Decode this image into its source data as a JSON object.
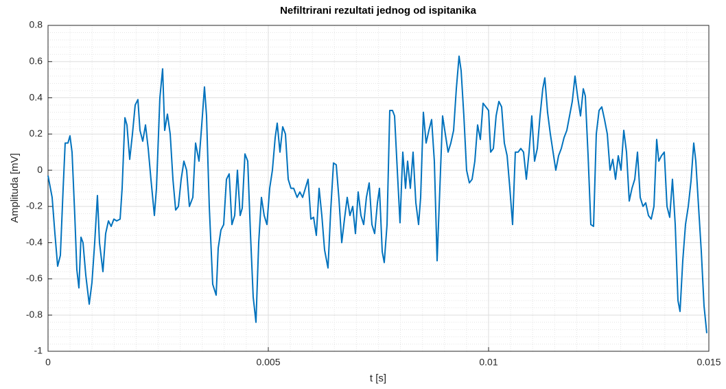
{
  "chart_data": {
    "type": "line",
    "title": "Nefiltrirani rezultati jednog od ispitanika",
    "xlabel": "t [s]",
    "ylabel": "Amplituda [mV]",
    "xlim": [
      0,
      0.015
    ],
    "ylim": [
      -1,
      0.8
    ],
    "xticks": [
      0,
      0.005,
      0.01,
      0.015
    ],
    "yticks": [
      -1,
      -0.8,
      -0.6,
      -0.4,
      -0.2,
      0,
      0.2,
      0.4,
      0.6,
      0.8
    ],
    "xminorticks": [
      0.0005,
      0.001,
      0.0015,
      0.002,
      0.0025,
      0.003,
      0.0035,
      0.004,
      0.0045,
      0.0055,
      0.006,
      0.0065,
      0.007,
      0.0075,
      0.008,
      0.0085,
      0.009,
      0.0095,
      0.0105,
      0.011,
      0.0115,
      0.012,
      0.0125,
      0.013,
      0.0135,
      0.014,
      0.0145
    ],
    "yminorticks": [
      -0.96,
      -0.92,
      -0.88,
      -0.84,
      -0.76,
      -0.72,
      -0.68,
      -0.64,
      -0.56,
      -0.52,
      -0.48,
      -0.44,
      -0.36,
      -0.32,
      -0.28,
      -0.24,
      -0.16,
      -0.12,
      -0.08,
      -0.04,
      0.04,
      0.08,
      0.12,
      0.16,
      0.24,
      0.28,
      0.32,
      0.36,
      0.44,
      0.48,
      0.52,
      0.56,
      0.64,
      0.68,
      0.72,
      0.76
    ],
    "grid": true,
    "minor_grid": true,
    "series": [
      {
        "color": "#0072bd",
        "x": [
          0,
          9.3e-05,
          0.000156,
          0.000218,
          0.00028,
          0.000343,
          0.000389,
          0.000452,
          0.000498,
          0.000545,
          0.000607,
          0.000654,
          0.000701,
          0.000748,
          0.000794,
          0.000857,
          0.000935,
          0.000997,
          0.001059,
          0.001121,
          0.001168,
          0.001246,
          0.001308,
          0.001371,
          0.001433,
          0.001495,
          0.001558,
          0.001636,
          0.001682,
          0.001745,
          0.001791,
          0.001854,
          0.001916,
          0.001978,
          0.00204,
          0.002087,
          0.00215,
          0.002212,
          0.002274,
          0.002336,
          0.002414,
          0.002461,
          0.002539,
          0.002601,
          0.002648,
          0.00271,
          0.002773,
          0.002835,
          0.002897,
          0.002959,
          0.003022,
          0.003084,
          0.003146,
          0.003209,
          0.003287,
          0.003349,
          0.003427,
          0.003489,
          0.003551,
          0.003598,
          0.00366,
          0.003738,
          0.003816,
          0.003863,
          0.003925,
          0.003987,
          0.00405,
          0.004112,
          0.004174,
          0.004237,
          0.004299,
          0.004361,
          0.004408,
          0.00447,
          0.004533,
          0.004595,
          0.004657,
          0.00472,
          0.004782,
          0.004844,
          0.004906,
          0.004969,
          0.005031,
          0.005093,
          0.005156,
          0.005202,
          0.005265,
          0.005327,
          0.005389,
          0.005452,
          0.005514,
          0.005576,
          0.005654,
          0.005716,
          0.005779,
          0.005841,
          0.005903,
          0.005966,
          0.006028,
          0.00609,
          0.006153,
          0.006215,
          0.006277,
          0.006355,
          0.006417,
          0.00648,
          0.006542,
          0.006604,
          0.006667,
          0.006729,
          0.006791,
          0.006853,
          0.006916,
          0.006978,
          0.00704,
          0.007103,
          0.007165,
          0.007227,
          0.00729,
          0.007352,
          0.007414,
          0.007477,
          0.007523,
          0.007586,
          0.007632,
          0.007695,
          0.007757,
          0.007819,
          0.007866,
          0.007928,
          0.00799,
          0.008053,
          0.008115,
          0.008162,
          0.008224,
          0.008286,
          0.008349,
          0.008411,
          0.008458,
          0.00852,
          0.008582,
          0.008645,
          0.008707,
          0.008769,
          0.008832,
          0.008894,
          0.008956,
          0.009018,
          0.009081,
          0.009143,
          0.009206,
          0.009268,
          0.00933,
          0.009377,
          0.009439,
          0.009501,
          0.009564,
          0.009626,
          0.009688,
          0.009751,
          0.009813,
          0.009875,
          0.009938,
          0.01,
          0.010047,
          0.010109,
          0.010171,
          0.010234,
          0.010296,
          0.010358,
          0.010421,
          0.010483,
          0.010545,
          0.010607,
          0.01067,
          0.010732,
          0.010794,
          0.010857,
          0.010919,
          0.010981,
          0.011044,
          0.011106,
          0.011168,
          0.01123,
          0.011277,
          0.011339,
          0.011402,
          0.011464,
          0.011526,
          0.011589,
          0.011651,
          0.011713,
          0.011776,
          0.011838,
          0.0119,
          0.011962,
          0.012025,
          0.012087,
          0.01215,
          0.012196,
          0.012259,
          0.012321,
          0.012383,
          0.012445,
          0.012508,
          0.01257,
          0.012632,
          0.012695,
          0.012757,
          0.012819,
          0.012882,
          0.012944,
          0.013006,
          0.013069,
          0.013131,
          0.013193,
          0.013255,
          0.013318,
          0.01338,
          0.013442,
          0.013505,
          0.013567,
          0.013629,
          0.013692,
          0.013754,
          0.013816,
          0.013863,
          0.013925,
          0.013988,
          0.01405,
          0.014112,
          0.014174,
          0.014237,
          0.014299,
          0.014346,
          0.014408,
          0.01447,
          0.014533,
          0.014595,
          0.014657,
          0.014704,
          0.014766,
          0.014829,
          0.014891,
          0.014953
        ],
        "values": [
          -0.03,
          -0.15,
          -0.35,
          -0.53,
          -0.47,
          -0.1,
          0.15,
          0.15,
          0.19,
          0.1,
          -0.25,
          -0.55,
          -0.65,
          -0.37,
          -0.4,
          -0.58,
          -0.74,
          -0.62,
          -0.4,
          -0.14,
          -0.4,
          -0.56,
          -0.35,
          -0.28,
          -0.31,
          -0.27,
          -0.28,
          -0.27,
          -0.1,
          0.29,
          0.25,
          0.06,
          0.2,
          0.36,
          0.39,
          0.22,
          0.16,
          0.25,
          0.12,
          -0.05,
          -0.25,
          -0.1,
          0.4,
          0.56,
          0.22,
          0.31,
          0.2,
          -0.05,
          -0.22,
          -0.2,
          -0.05,
          0.05,
          0,
          -0.2,
          -0.15,
          0.15,
          0.05,
          0.25,
          0.46,
          0.3,
          -0.2,
          -0.63,
          -0.69,
          -0.43,
          -0.33,
          -0.3,
          -0.05,
          -0.02,
          -0.3,
          -0.25,
          0,
          -0.25,
          -0.21,
          0.09,
          0.05,
          -0.35,
          -0.7,
          -0.84,
          -0.4,
          -0.15,
          -0.25,
          -0.3,
          -0.1,
          0,
          0.18,
          0.26,
          0.1,
          0.24,
          0.2,
          -0.05,
          -0.1,
          -0.1,
          -0.15,
          -0.12,
          -0.15,
          -0.1,
          -0.05,
          -0.27,
          -0.26,
          -0.36,
          -0.1,
          -0.25,
          -0.44,
          -0.54,
          -0.22,
          0.04,
          0.03,
          -0.16,
          -0.4,
          -0.27,
          -0.15,
          -0.25,
          -0.2,
          -0.35,
          -0.12,
          -0.25,
          -0.3,
          -0.15,
          -0.07,
          -0.3,
          -0.35,
          -0.18,
          -0.1,
          -0.45,
          -0.51,
          -0.3,
          0.33,
          0.33,
          0.3,
          0,
          -0.29,
          0.1,
          -0.1,
          0.05,
          -0.1,
          0.1,
          -0.18,
          -0.3,
          -0.15,
          0.32,
          0.15,
          0.22,
          0.28,
          0.05,
          -0.5,
          -0.1,
          0.3,
          0.2,
          0.1,
          0.15,
          0.22,
          0.45,
          0.63,
          0.55,
          0.3,
          0,
          -0.07,
          -0.05,
          0.05,
          0.25,
          0.17,
          0.37,
          0.35,
          0.33,
          0.1,
          0.12,
          0.3,
          0.38,
          0.35,
          0.15,
          0.08,
          -0.1,
          -0.3,
          0.1,
          0.1,
          0.12,
          0.1,
          -0.05,
          0.1,
          0.3,
          0.05,
          0.12,
          0.3,
          0.45,
          0.51,
          0.32,
          0.2,
          0.1,
          0,
          0.08,
          0.12,
          0.18,
          0.22,
          0.3,
          0.38,
          0.52,
          0.4,
          0.3,
          0.45,
          0.41,
          0.08,
          -0.3,
          -0.31,
          0.2,
          0.33,
          0.35,
          0.28,
          0.2,
          0,
          0.06,
          -0.05,
          0.08,
          0,
          0.22,
          0.1,
          -0.17,
          -0.1,
          -0.05,
          0.1,
          -0.15,
          -0.2,
          -0.18,
          -0.25,
          -0.27,
          -0.2,
          0.17,
          0.05,
          0.08,
          0.1,
          -0.2,
          -0.26,
          -0.05,
          -0.3,
          -0.72,
          -0.78,
          -0.5,
          -0.3,
          -0.2,
          -0.06,
          0.15,
          0.05,
          -0.2,
          -0.45,
          -0.75,
          -0.9
        ]
      }
    ]
  }
}
